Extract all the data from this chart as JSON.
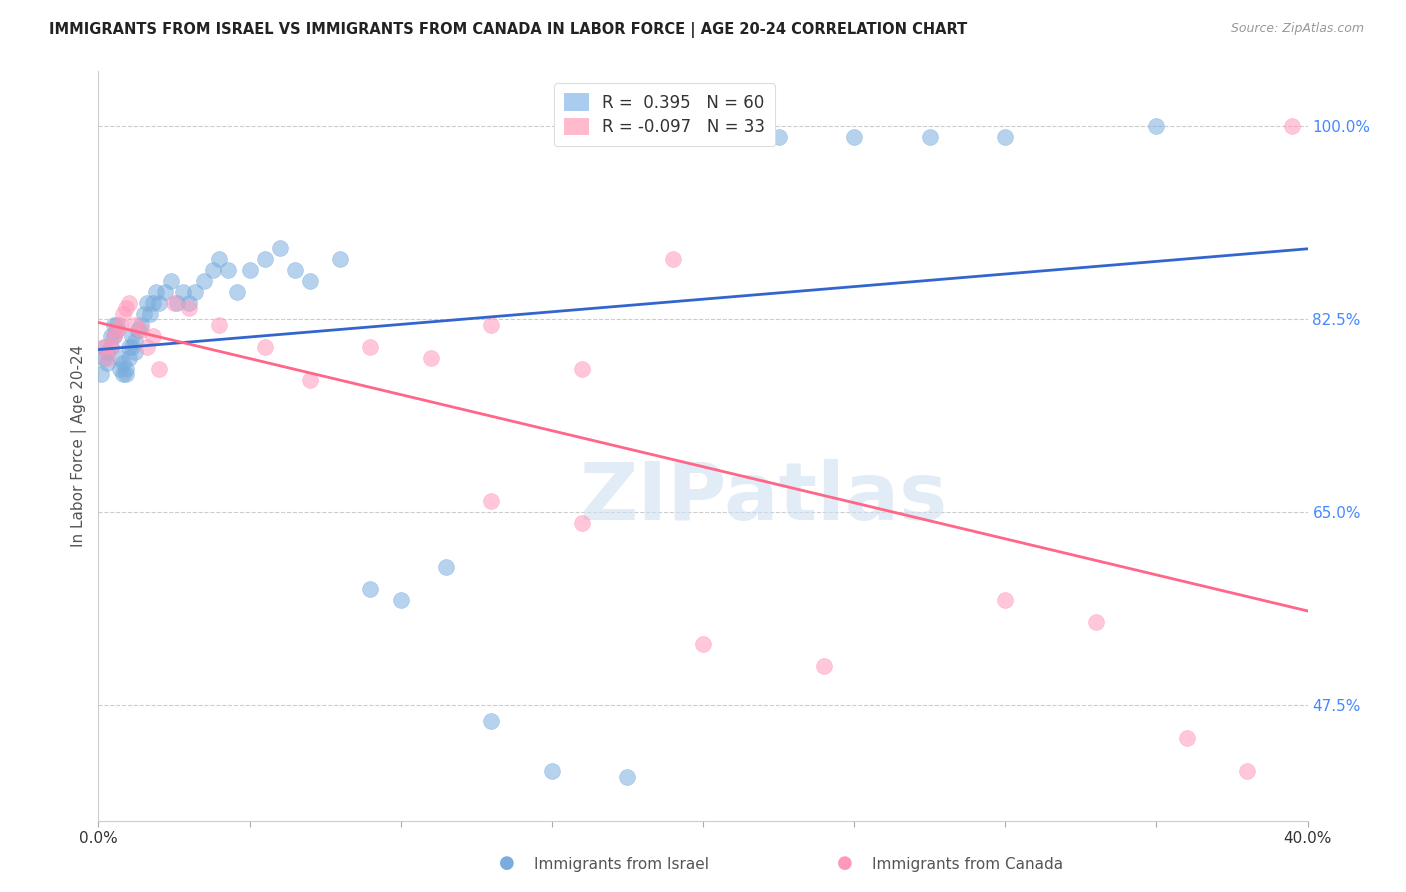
{
  "title": "IMMIGRANTS FROM ISRAEL VS IMMIGRANTS FROM CANADA IN LABOR FORCE | AGE 20-24 CORRELATION CHART",
  "source": "Source: ZipAtlas.com",
  "ylabel": "In Labor Force | Age 20-24",
  "xlim": [
    0.0,
    0.4
  ],
  "ylim": [
    0.37,
    1.05
  ],
  "background_color": "#ffffff",
  "israel_color": "#7aaddd",
  "canada_color": "#ff99bb",
  "israel_R": 0.395,
  "israel_N": 60,
  "canada_R": -0.097,
  "canada_N": 33,
  "israel_line_color": "#3366cc",
  "canada_line_color": "#ff6688",
  "grid_color": "#cccccc",
  "israel_x": [
    0.001,
    0.002,
    0.002,
    0.003,
    0.003,
    0.004,
    0.004,
    0.005,
    0.005,
    0.006,
    0.006,
    0.007,
    0.007,
    0.008,
    0.008,
    0.009,
    0.009,
    0.01,
    0.01,
    0.011,
    0.011,
    0.012,
    0.012,
    0.013,
    0.014,
    0.015,
    0.016,
    0.017,
    0.018,
    0.019,
    0.02,
    0.022,
    0.024,
    0.026,
    0.028,
    0.03,
    0.032,
    0.035,
    0.038,
    0.04,
    0.043,
    0.046,
    0.05,
    0.055,
    0.06,
    0.065,
    0.07,
    0.08,
    0.09,
    0.1,
    0.115,
    0.13,
    0.15,
    0.175,
    0.2,
    0.225,
    0.25,
    0.275,
    0.3,
    0.35
  ],
  "israel_y": [
    0.775,
    0.79,
    0.8,
    0.785,
    0.795,
    0.8,
    0.81,
    0.81,
    0.82,
    0.815,
    0.82,
    0.78,
    0.79,
    0.775,
    0.785,
    0.775,
    0.78,
    0.79,
    0.8,
    0.8,
    0.81,
    0.795,
    0.805,
    0.815,
    0.82,
    0.83,
    0.84,
    0.83,
    0.84,
    0.85,
    0.84,
    0.85,
    0.86,
    0.84,
    0.85,
    0.84,
    0.85,
    0.86,
    0.87,
    0.88,
    0.87,
    0.85,
    0.87,
    0.88,
    0.89,
    0.87,
    0.86,
    0.88,
    0.58,
    0.57,
    0.6,
    0.46,
    0.415,
    0.41,
    0.99,
    0.99,
    0.99,
    0.99,
    0.99,
    1.0
  ],
  "canada_x": [
    0.002,
    0.003,
    0.004,
    0.005,
    0.006,
    0.007,
    0.008,
    0.009,
    0.01,
    0.012,
    0.014,
    0.016,
    0.018,
    0.02,
    0.025,
    0.03,
    0.04,
    0.055,
    0.07,
    0.09,
    0.11,
    0.13,
    0.16,
    0.19,
    0.13,
    0.16,
    0.2,
    0.24,
    0.3,
    0.33,
    0.36,
    0.38,
    0.395
  ],
  "canada_y": [
    0.8,
    0.79,
    0.8,
    0.81,
    0.815,
    0.82,
    0.83,
    0.835,
    0.84,
    0.82,
    0.815,
    0.8,
    0.81,
    0.78,
    0.84,
    0.835,
    0.82,
    0.8,
    0.77,
    0.8,
    0.79,
    0.66,
    0.64,
    0.88,
    0.82,
    0.78,
    0.53,
    0.51,
    0.57,
    0.55,
    0.445,
    0.415,
    1.0
  ],
  "ytick_positions": [
    1.0,
    0.825,
    0.65,
    0.475
  ],
  "ytick_labels": [
    "100.0%",
    "82.5%",
    "65.0%",
    "47.5%"
  ],
  "xtick_positions": [
    0.0,
    0.05,
    0.1,
    0.15,
    0.2,
    0.25,
    0.3,
    0.35,
    0.4
  ]
}
